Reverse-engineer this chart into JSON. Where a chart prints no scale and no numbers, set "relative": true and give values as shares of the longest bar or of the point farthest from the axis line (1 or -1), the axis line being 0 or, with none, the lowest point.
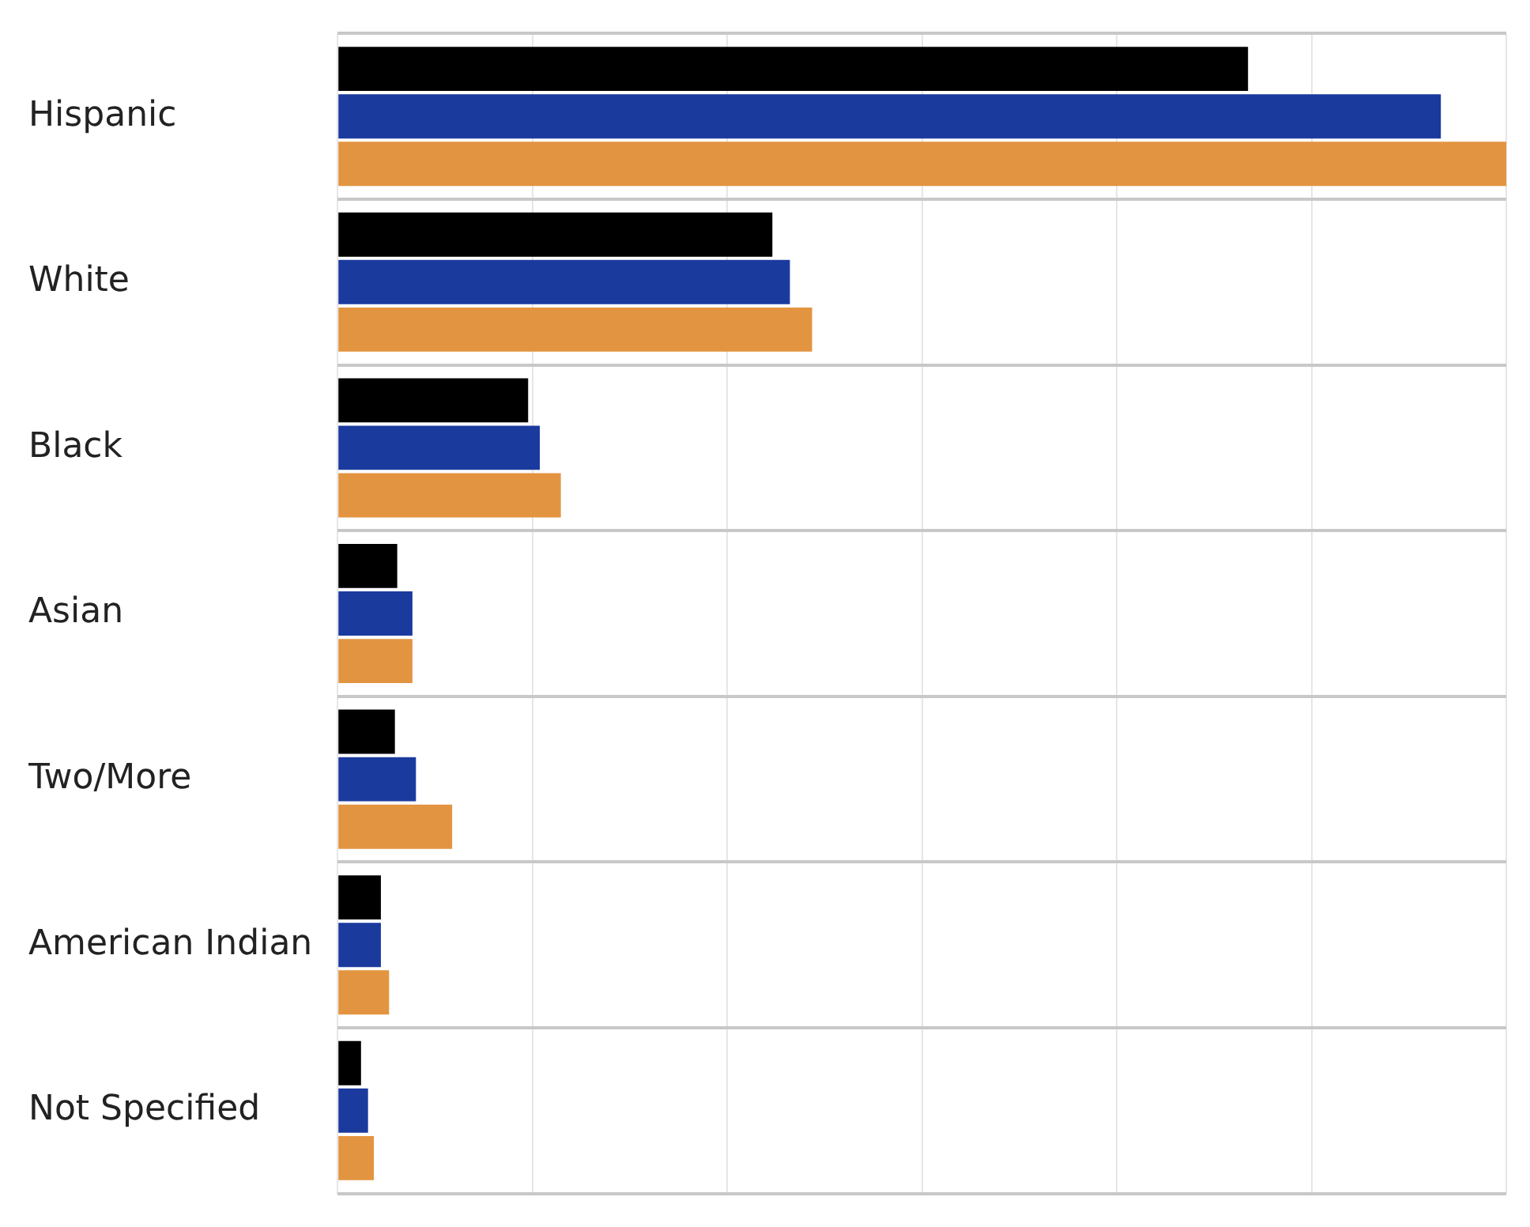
{
  "chart_data": {
    "type": "bar",
    "orientation": "horizontal",
    "relative": true,
    "grid": true,
    "legend": false,
    "categories": [
      "Hispanic",
      "White",
      "Black",
      "Asian",
      "Two/More",
      "American Indian",
      "Not Specified"
    ],
    "series": [
      {
        "color": "#000000",
        "values": [
          0.779,
          0.372,
          0.163,
          0.051,
          0.049,
          0.037,
          0.02
        ]
      },
      {
        "color": "#1a3a9e",
        "values": [
          0.944,
          0.387,
          0.173,
          0.064,
          0.067,
          0.037,
          0.026
        ]
      },
      {
        "color": "#e39440",
        "values": [
          1,
          0.406,
          0.191,
          0.064,
          0.098,
          0.044,
          0.031
        ]
      }
    ]
  }
}
